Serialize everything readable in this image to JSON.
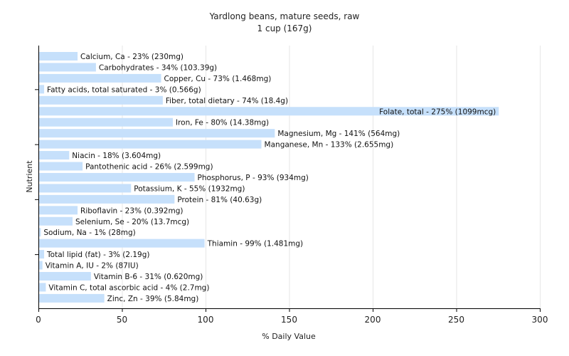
{
  "chart_data": {
    "type": "bar",
    "orientation": "horizontal",
    "title": "Yardlong beans, mature seeds, raw",
    "subtitle": "1 cup (167g)",
    "xlabel": "% Daily Value",
    "ylabel": "Nutrient",
    "xlim": [
      0,
      300
    ],
    "xticks": [
      0,
      50,
      100,
      150,
      200,
      250,
      300
    ],
    "grid": true,
    "bar_color": "#c6e0fb",
    "categories": [
      "Calcium, Ca",
      "Carbohydrates",
      "Copper, Cu",
      "Fatty acids, total saturated",
      "Fiber, total dietary",
      "Folate, total",
      "Iron, Fe",
      "Magnesium, Mg",
      "Manganese, Mn",
      "Niacin",
      "Pantothenic acid",
      "Phosphorus, P",
      "Potassium, K",
      "Protein",
      "Riboflavin",
      "Selenium, Se",
      "Sodium, Na",
      "Thiamin",
      "Total lipid (fat)",
      "Vitamin A, IU",
      "Vitamin B-6",
      "Vitamin C, total ascorbic acid",
      "Zinc, Zn"
    ],
    "values": [
      23,
      34,
      73,
      3,
      74,
      275,
      80,
      141,
      133,
      18,
      26,
      93,
      55,
      81,
      23,
      20,
      1,
      99,
      3,
      2,
      31,
      4,
      39
    ],
    "labels": [
      "Calcium, Ca - 23% (230mg)",
      "Carbohydrates - 34% (103.39g)",
      "Copper, Cu - 73% (1.468mg)",
      "Fatty acids, total saturated - 3% (0.566g)",
      "Fiber, total dietary - 74% (18.4g)",
      "Folate, total - 275% (1099mcg)",
      "Iron, Fe - 80% (14.38mg)",
      "Magnesium, Mg - 141% (564mg)",
      "Manganese, Mn - 133% (2.655mg)",
      "Niacin - 18% (3.604mg)",
      "Pantothenic acid - 26% (2.599mg)",
      "Phosphorus, P - 93% (934mg)",
      "Potassium, K - 55% (1932mg)",
      "Protein - 81% (40.63g)",
      "Riboflavin - 23% (0.392mg)",
      "Selenium, Se - 20% (13.7mcg)",
      "Sodium, Na - 1% (28mg)",
      "Thiamin - 99% (1.481mg)",
      "Total lipid (fat) - 3% (2.19g)",
      "Vitamin A, IU - 2% (87IU)",
      "Vitamin B-6 - 31% (0.620mg)",
      "Vitamin C, total ascorbic acid - 4% (2.7mg)",
      "Zinc, Zn - 39% (5.84mg)"
    ]
  }
}
